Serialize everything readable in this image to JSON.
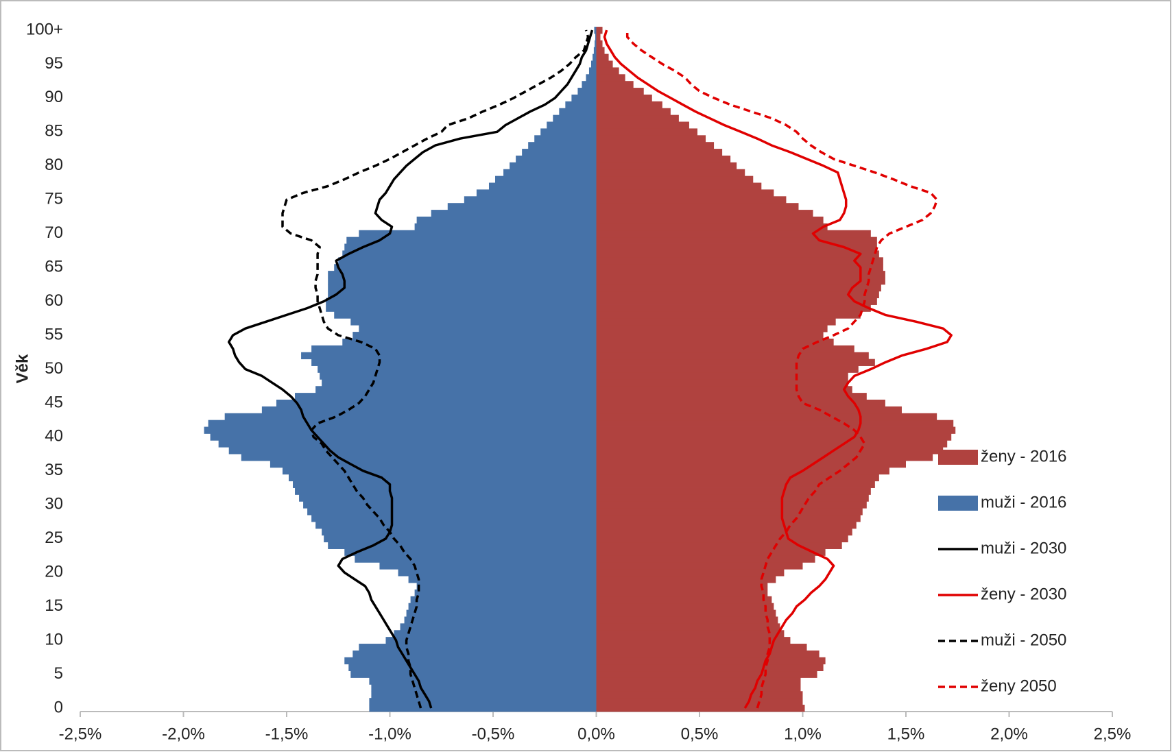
{
  "chart_data": {
    "type": "pyramid",
    "ylabel": "Věk",
    "legend": "right",
    "categories": [
      "0",
      null,
      null,
      null,
      null,
      "5",
      null,
      null,
      null,
      null,
      "10",
      null,
      null,
      null,
      null,
      "15",
      null,
      null,
      null,
      null,
      "20",
      null,
      null,
      null,
      null,
      "25",
      null,
      null,
      null,
      null,
      "30",
      null,
      null,
      null,
      null,
      "35",
      null,
      null,
      null,
      null,
      "40",
      null,
      null,
      null,
      null,
      "45",
      null,
      null,
      null,
      null,
      "50",
      null,
      null,
      null,
      null,
      "55",
      null,
      null,
      null,
      null,
      "60",
      null,
      null,
      null,
      null,
      "65",
      null,
      null,
      null,
      null,
      "70",
      null,
      null,
      null,
      null,
      "75",
      null,
      null,
      null,
      null,
      "80",
      null,
      null,
      null,
      null,
      "85",
      null,
      null,
      null,
      null,
      "90",
      null,
      null,
      null,
      null,
      "95",
      null,
      null,
      null,
      null,
      "100+"
    ],
    "xlim": [
      -2.5,
      2.5
    ],
    "xticks": [
      {
        "value": -2.5,
        "label": "-2,5%"
      },
      {
        "value": -2,
        "label": "-2,0%"
      },
      {
        "value": -1.5,
        "label": "-1,5%"
      },
      {
        "value": -1,
        "label": "-1,0%"
      },
      {
        "value": -0.5,
        "label": "-0,5%"
      },
      {
        "value": 0,
        "label": "0,0%"
      },
      {
        "value": 0.5,
        "label": "0,5%"
      },
      {
        "value": 1,
        "label": "1,0%"
      },
      {
        "value": 1.5,
        "label": "1,5%"
      },
      {
        "value": 2,
        "label": "2,0%"
      },
      {
        "value": 2.5,
        "label": "2,5%"
      }
    ],
    "series": [
      {
        "name": "ženy - 2016",
        "kind": "bar",
        "color": "#b0423f",
        "values": [
          1.01,
          1.0,
          1.0,
          0.99,
          0.99,
          1.07,
          1.1,
          1.11,
          1.08,
          1.02,
          0.94,
          0.91,
          0.89,
          0.88,
          0.87,
          0.86,
          0.85,
          0.83,
          0.83,
          0.87,
          0.91,
          1.0,
          1.06,
          1.11,
          1.19,
          1.22,
          1.24,
          1.26,
          1.28,
          1.29,
          1.31,
          1.32,
          1.33,
          1.35,
          1.37,
          1.42,
          1.5,
          1.63,
          1.68,
          1.7,
          1.72,
          1.74,
          1.73,
          1.65,
          1.48,
          1.4,
          1.31,
          1.24,
          1.22,
          1.22,
          1.27,
          1.35,
          1.32,
          1.25,
          1.15,
          1.1,
          1.12,
          1.16,
          1.28,
          1.33,
          1.36,
          1.37,
          1.38,
          1.4,
          1.4,
          1.39,
          1.39,
          1.37,
          1.36,
          1.36,
          1.33,
          1.12,
          1.1,
          1.05,
          0.98,
          0.92,
          0.86,
          0.8,
          0.76,
          0.72,
          0.68,
          0.65,
          0.61,
          0.57,
          0.53,
          0.49,
          0.45,
          0.4,
          0.36,
          0.32,
          0.27,
          0.23,
          0.18,
          0.14,
          0.11,
          0.08,
          0.06,
          0.04,
          0.03,
          0.02,
          0.03
        ]
      },
      {
        "name": "muži - 2016",
        "kind": "bar",
        "color": "#4672a8",
        "values": [
          -1.1,
          -1.1,
          -1.09,
          -1.09,
          -1.1,
          -1.19,
          -1.2,
          -1.22,
          -1.18,
          -1.15,
          -1.02,
          -0.98,
          -0.95,
          -0.93,
          -0.92,
          -0.91,
          -0.9,
          -0.88,
          -0.87,
          -0.91,
          -0.96,
          -1.05,
          -1.17,
          -1.22,
          -1.3,
          -1.32,
          -1.33,
          -1.36,
          -1.38,
          -1.4,
          -1.42,
          -1.44,
          -1.46,
          -1.47,
          -1.49,
          -1.52,
          -1.58,
          -1.72,
          -1.78,
          -1.83,
          -1.87,
          -1.9,
          -1.88,
          -1.8,
          -1.62,
          -1.55,
          -1.46,
          -1.36,
          -1.33,
          -1.34,
          -1.35,
          -1.38,
          -1.43,
          -1.38,
          -1.23,
          -1.18,
          -1.15,
          -1.19,
          -1.27,
          -1.31,
          -1.31,
          -1.3,
          -1.3,
          -1.3,
          -1.3,
          -1.27,
          -1.25,
          -1.23,
          -1.22,
          -1.21,
          -1.15,
          -0.88,
          -0.87,
          -0.8,
          -0.72,
          -0.64,
          -0.58,
          -0.52,
          -0.49,
          -0.45,
          -0.42,
          -0.39,
          -0.36,
          -0.33,
          -0.3,
          -0.27,
          -0.24,
          -0.21,
          -0.18,
          -0.15,
          -0.12,
          -0.09,
          -0.07,
          -0.05,
          -0.035,
          -0.025,
          -0.018,
          -0.012,
          -0.008,
          -0.005,
          -0.01
        ]
      },
      {
        "name": "muži - 2030",
        "kind": "line",
        "dashed": false,
        "color": "#000000",
        "values": [
          -0.8,
          -0.81,
          -0.83,
          -0.85,
          -0.86,
          -0.88,
          -0.9,
          -0.92,
          -0.94,
          -0.96,
          -0.97,
          -0.99,
          -1.01,
          -1.03,
          -1.05,
          -1.07,
          -1.09,
          -1.1,
          -1.12,
          -1.17,
          -1.22,
          -1.25,
          -1.23,
          -1.16,
          -1.08,
          -1.02,
          -1.0,
          -0.99,
          -0.99,
          -0.99,
          -0.99,
          -0.99,
          -1.0,
          -1.0,
          -1.04,
          -1.13,
          -1.19,
          -1.25,
          -1.29,
          -1.32,
          -1.35,
          -1.38,
          -1.4,
          -1.42,
          -1.43,
          -1.45,
          -1.48,
          -1.52,
          -1.57,
          -1.62,
          -1.7,
          -1.73,
          -1.75,
          -1.76,
          -1.78,
          -1.76,
          -1.7,
          -1.6,
          -1.5,
          -1.4,
          -1.32,
          -1.26,
          -1.22,
          -1.22,
          -1.23,
          -1.25,
          -1.26,
          -1.2,
          -1.13,
          -1.05,
          -1.0,
          -0.99,
          -1.04,
          -1.07,
          -1.06,
          -1.05,
          -1.02,
          -1.0,
          -0.98,
          -0.95,
          -0.92,
          -0.88,
          -0.84,
          -0.78,
          -0.66,
          -0.48,
          -0.44,
          -0.38,
          -0.32,
          -0.25,
          -0.2,
          -0.17,
          -0.14,
          -0.12,
          -0.1,
          -0.08,
          -0.07,
          -0.05,
          -0.04,
          -0.03,
          -0.02
        ]
      },
      {
        "name": "ženy - 2030",
        "kind": "line",
        "dashed": false,
        "color": "#e00000",
        "values": [
          0.72,
          0.74,
          0.75,
          0.77,
          0.78,
          0.8,
          0.81,
          0.82,
          0.84,
          0.85,
          0.86,
          0.88,
          0.9,
          0.92,
          0.95,
          0.97,
          1.01,
          1.04,
          1.08,
          1.11,
          1.13,
          1.15,
          1.12,
          1.05,
          0.98,
          0.93,
          0.92,
          0.91,
          0.9,
          0.9,
          0.9,
          0.9,
          0.91,
          0.92,
          0.94,
          1.0,
          1.05,
          1.1,
          1.15,
          1.2,
          1.25,
          1.27,
          1.28,
          1.28,
          1.27,
          1.25,
          1.22,
          1.2,
          1.22,
          1.25,
          1.33,
          1.4,
          1.48,
          1.6,
          1.7,
          1.72,
          1.68,
          1.55,
          1.4,
          1.32,
          1.25,
          1.22,
          1.24,
          1.28,
          1.28,
          1.28,
          1.25,
          1.28,
          1.2,
          1.08,
          1.05,
          1.1,
          1.18,
          1.2,
          1.21,
          1.21,
          1.2,
          1.19,
          1.18,
          1.17,
          1.1,
          1.02,
          0.94,
          0.85,
          0.78,
          0.7,
          0.62,
          0.55,
          0.48,
          0.42,
          0.36,
          0.3,
          0.25,
          0.2,
          0.16,
          0.12,
          0.09,
          0.07,
          0.05,
          0.04,
          0.05
        ]
      },
      {
        "name": "muži - 2050",
        "kind": "line",
        "dashed": true,
        "color": "#000000",
        "values": [
          -0.85,
          -0.86,
          -0.87,
          -0.88,
          -0.89,
          -0.9,
          -0.9,
          -0.91,
          -0.91,
          -0.92,
          -0.92,
          -0.91,
          -0.9,
          -0.89,
          -0.88,
          -0.87,
          -0.87,
          -0.86,
          -0.86,
          -0.86,
          -0.87,
          -0.88,
          -0.9,
          -0.93,
          -0.95,
          -0.98,
          -1.0,
          -1.03,
          -1.05,
          -1.08,
          -1.11,
          -1.13,
          -1.16,
          -1.18,
          -1.2,
          -1.22,
          -1.25,
          -1.28,
          -1.31,
          -1.33,
          -1.37,
          -1.38,
          -1.35,
          -1.26,
          -1.2,
          -1.15,
          -1.12,
          -1.1,
          -1.08,
          -1.07,
          -1.06,
          -1.05,
          -1.05,
          -1.07,
          -1.14,
          -1.25,
          -1.3,
          -1.32,
          -1.33,
          -1.34,
          -1.35,
          -1.35,
          -1.36,
          -1.36,
          -1.35,
          -1.35,
          -1.35,
          -1.35,
          -1.34,
          -1.38,
          -1.48,
          -1.52,
          -1.52,
          -1.52,
          -1.51,
          -1.5,
          -1.42,
          -1.3,
          -1.22,
          -1.15,
          -1.07,
          -1.0,
          -0.94,
          -0.88,
          -0.82,
          -0.75,
          -0.72,
          -0.62,
          -0.55,
          -0.47,
          -0.4,
          -0.34,
          -0.28,
          -0.22,
          -0.17,
          -0.13,
          -0.1,
          -0.06,
          -0.05,
          -0.04,
          -0.05
        ]
      },
      {
        "name": "ženy 2050",
        "kind": "line",
        "dashed": true,
        "color": "#e00000",
        "values": [
          0.78,
          0.79,
          0.8,
          0.8,
          0.81,
          0.82,
          0.82,
          0.83,
          0.83,
          0.84,
          0.84,
          0.84,
          0.83,
          0.83,
          0.82,
          0.82,
          0.81,
          0.81,
          0.8,
          0.8,
          0.81,
          0.82,
          0.83,
          0.85,
          0.87,
          0.89,
          0.92,
          0.94,
          0.97,
          0.99,
          1.01,
          1.03,
          1.06,
          1.08,
          1.13,
          1.18,
          1.22,
          1.26,
          1.28,
          1.3,
          1.28,
          1.25,
          1.2,
          1.14,
          1.08,
          1.0,
          0.98,
          0.97,
          0.97,
          0.97,
          0.97,
          0.97,
          0.98,
          1.0,
          1.07,
          1.15,
          1.22,
          1.25,
          1.28,
          1.29,
          1.3,
          1.3,
          1.31,
          1.32,
          1.32,
          1.33,
          1.34,
          1.35,
          1.36,
          1.38,
          1.42,
          1.5,
          1.58,
          1.62,
          1.64,
          1.65,
          1.62,
          1.52,
          1.44,
          1.35,
          1.25,
          1.15,
          1.09,
          1.04,
          1.0,
          0.97,
          0.92,
          0.85,
          0.75,
          0.65,
          0.57,
          0.5,
          0.46,
          0.43,
          0.38,
          0.32,
          0.27,
          0.22,
          0.18,
          0.15,
          0.15
        ]
      }
    ]
  }
}
